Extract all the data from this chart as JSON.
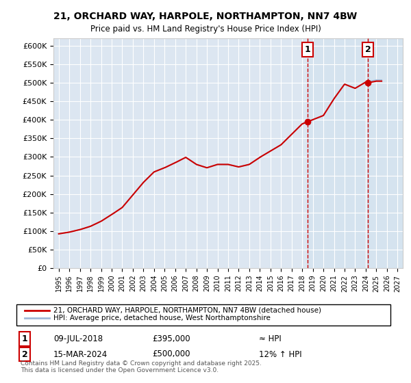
{
  "title": "21, ORCHARD WAY, HARPOLE, NORTHAMPTON, NN7 4BW",
  "subtitle": "Price paid vs. HM Land Registry's House Price Index (HPI)",
  "ylabel": "",
  "background_color": "#ffffff",
  "plot_background": "#dce6f1",
  "grid_color": "#ffffff",
  "line_color_hpi": "#a0b8d8",
  "line_color_price": "#cc0000",
  "marker_color": "#cc0000",
  "dashed_line_color": "#cc0000",
  "sale1_date": "2018-07-09",
  "sale1_price": 395000,
  "sale1_label": "1",
  "sale1_year": 2018.52,
  "sale2_date": "2024-03-15",
  "sale2_price": 500000,
  "sale2_label": "2",
  "sale2_year": 2024.21,
  "ylim_min": 0,
  "ylim_max": 620000,
  "yticks": [
    0,
    50000,
    100000,
    150000,
    200000,
    250000,
    300000,
    350000,
    400000,
    450000,
    500000,
    550000,
    600000
  ],
  "ytick_labels": [
    "£0",
    "£50K",
    "£100K",
    "£150K",
    "£200K",
    "£250K",
    "£300K",
    "£350K",
    "£400K",
    "£450K",
    "£500K",
    "£550K",
    "£600K"
  ],
  "xlim_min": 1994.5,
  "xlim_max": 2027.5,
  "legend_line1": "21, ORCHARD WAY, HARPOLE, NORTHAMPTON, NN7 4BW (detached house)",
  "legend_line2": "HPI: Average price, detached house, West Northamptonshire",
  "footnote": "Contains HM Land Registry data © Crown copyright and database right 2025.\nThis data is licensed under the Open Government Licence v3.0.",
  "table_rows": [
    {
      "num": "1",
      "date": "09-JUL-2018",
      "price": "£395,000",
      "hpi": "≈ HPI"
    },
    {
      "num": "2",
      "date": "15-MAR-2024",
      "price": "£500,000",
      "hpi": "12% ↑ HPI"
    }
  ]
}
